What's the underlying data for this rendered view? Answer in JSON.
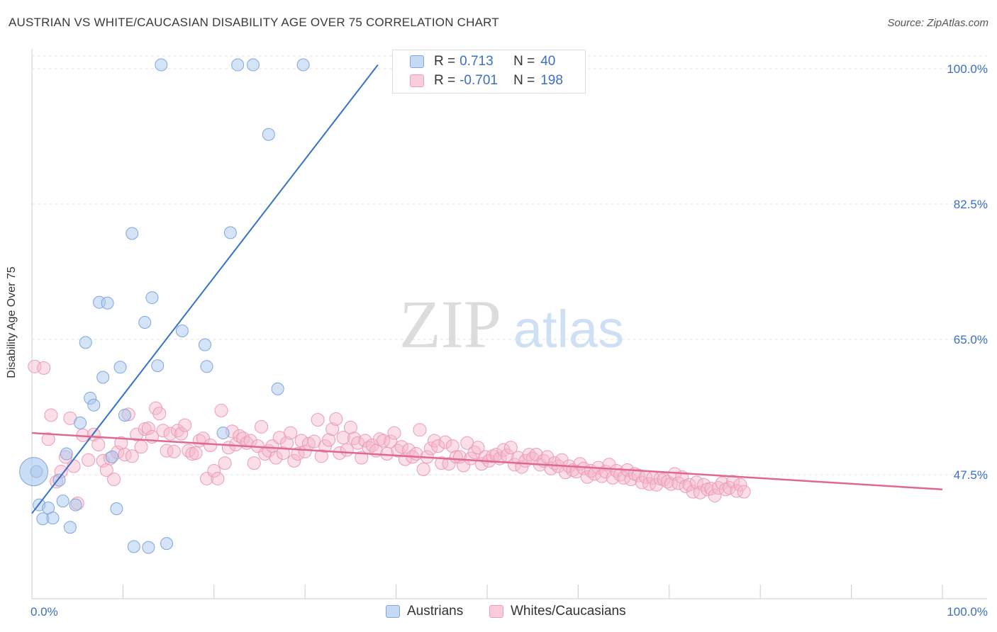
{
  "title": "AUSTRIAN VS WHITE/CAUCASIAN DISABILITY AGE OVER 75 CORRELATION CHART",
  "source": "Source: ZipAtlas.com",
  "watermark": {
    "zip": "ZIP",
    "atlas": "atlas"
  },
  "legend": {
    "rows": [
      {
        "r_label": "R =",
        "r_value": "0.713",
        "n_label": "N =",
        "n_value": "40",
        "color": "#a9c7ee"
      },
      {
        "r_label": "R =",
        "r_value": "-0.701",
        "n_label": "N =",
        "n_value": "198",
        "color": "#f5b7cb"
      }
    ]
  },
  "chart_data": {
    "type": "scatter",
    "xlabel": "",
    "ylabel": "Disability Age Over 75",
    "xlim": [
      0,
      100
    ],
    "ylim": [
      32.5,
      102
    ],
    "x_tick_labels": [
      "0.0%",
      "100.0%"
    ],
    "y_ticks": [
      47.5,
      65.0,
      82.5,
      100.0
    ],
    "y_tick_labels": [
      "47.5%",
      "65.0%",
      "82.5%",
      "100.0%"
    ],
    "grid": true,
    "colors": {
      "austrians": "#a9c7ee",
      "austrians_line": "#3472c9",
      "whites": "#f5b7cb",
      "whites_line": "#e0688f",
      "axis_label": "#3a6fc4"
    },
    "series": [
      {
        "name": "Austrians",
        "points": [
          [
            0.5,
            47.9
          ],
          [
            0.8,
            43.6
          ],
          [
            1.2,
            41.8
          ],
          [
            1.8,
            43.2
          ],
          [
            2.3,
            41.9
          ],
          [
            3.0,
            46.8
          ],
          [
            3.4,
            44.1
          ],
          [
            3.8,
            50.2
          ],
          [
            4.2,
            40.7
          ],
          [
            4.8,
            43.6
          ],
          [
            5.3,
            54.2
          ],
          [
            5.9,
            64.6
          ],
          [
            6.4,
            57.4
          ],
          [
            6.8,
            56.5
          ],
          [
            7.4,
            69.8
          ],
          [
            7.8,
            60.1
          ],
          [
            8.3,
            69.7
          ],
          [
            8.8,
            49.8
          ],
          [
            9.3,
            43.1
          ],
          [
            9.7,
            61.4
          ],
          [
            10.2,
            55.2
          ],
          [
            11.0,
            78.7
          ],
          [
            11.2,
            38.2
          ],
          [
            12.4,
            67.2
          ],
          [
            12.8,
            38.1
          ],
          [
            13.2,
            70.4
          ],
          [
            13.8,
            61.6
          ],
          [
            14.2,
            100.5
          ],
          [
            14.8,
            38.6
          ],
          [
            16.5,
            66.1
          ],
          [
            19.0,
            64.3
          ],
          [
            19.2,
            61.5
          ],
          [
            21.0,
            52.9
          ],
          [
            21.8,
            78.8
          ],
          [
            22.6,
            100.5
          ],
          [
            24.3,
            100.5
          ],
          [
            26.0,
            91.5
          ],
          [
            27.0,
            58.6
          ],
          [
            29.8,
            100.5
          ],
          [
            41.0,
            100.5
          ]
        ],
        "trend": [
          [
            0,
            42.5
          ],
          [
            38,
            100.5
          ]
        ]
      },
      {
        "name": "Whites/Caucasians",
        "points": [
          [
            0.3,
            61.5
          ],
          [
            1.3,
            61.3
          ],
          [
            1.8,
            52.1
          ],
          [
            2.1,
            55.2
          ],
          [
            2.7,
            46.6
          ],
          [
            3.2,
            47.9
          ],
          [
            3.7,
            49.8
          ],
          [
            4.2,
            54.8
          ],
          [
            4.6,
            48.6
          ],
          [
            5.0,
            43.8
          ],
          [
            5.6,
            52.6
          ],
          [
            6.2,
            49.4
          ],
          [
            6.8,
            52.7
          ],
          [
            7.3,
            51.4
          ],
          [
            7.8,
            49.3
          ],
          [
            8.2,
            48.1
          ],
          [
            8.6,
            49.6
          ],
          [
            9.0,
            46.9
          ],
          [
            9.4,
            50.4
          ],
          [
            9.8,
            51.6
          ],
          [
            10.2,
            50.1
          ],
          [
            10.6,
            55.3
          ],
          [
            11.0,
            49.9
          ],
          [
            11.5,
            52.7
          ],
          [
            12.0,
            51.1
          ],
          [
            12.4,
            53.4
          ],
          [
            12.8,
            53.5
          ],
          [
            13.2,
            52.4
          ],
          [
            13.6,
            56.1
          ],
          [
            14.0,
            55.4
          ],
          [
            14.4,
            53.2
          ],
          [
            14.8,
            50.6
          ],
          [
            15.2,
            52.8
          ],
          [
            15.6,
            50.5
          ],
          [
            16.0,
            53.2
          ],
          [
            16.4,
            52.8
          ],
          [
            16.8,
            53.9
          ],
          [
            17.2,
            50.6
          ],
          [
            17.6,
            50.2
          ],
          [
            18.0,
            50.3
          ],
          [
            18.4,
            51.9
          ],
          [
            18.8,
            52.2
          ],
          [
            19.2,
            47.0
          ],
          [
            19.6,
            51.3
          ],
          [
            20.0,
            48.0
          ],
          [
            20.4,
            47.0
          ],
          [
            20.8,
            55.8
          ],
          [
            21.2,
            49.0
          ],
          [
            21.6,
            51.0
          ],
          [
            22.0,
            53.1
          ],
          [
            22.4,
            51.4
          ],
          [
            22.8,
            52.5
          ],
          [
            23.2,
            52.2
          ],
          [
            23.6,
            51.6
          ],
          [
            24.0,
            51.9
          ],
          [
            24.4,
            49.0
          ],
          [
            24.8,
            51.2
          ],
          [
            25.2,
            53.7
          ],
          [
            25.6,
            50.2
          ],
          [
            26.0,
            50.6
          ],
          [
            26.4,
            51.2
          ],
          [
            26.8,
            49.7
          ],
          [
            27.2,
            52.3
          ],
          [
            27.6,
            50.3
          ],
          [
            28.0,
            51.6
          ],
          [
            28.4,
            52.9
          ],
          [
            28.8,
            49.3
          ],
          [
            29.2,
            50.2
          ],
          [
            29.6,
            51.9
          ],
          [
            30.0,
            50.5
          ],
          [
            30.4,
            51.5
          ],
          [
            31.0,
            51.8
          ],
          [
            31.4,
            54.6
          ],
          [
            31.8,
            49.9
          ],
          [
            32.2,
            51.2
          ],
          [
            32.6,
            52.0
          ],
          [
            33.0,
            53.4
          ],
          [
            33.4,
            54.7
          ],
          [
            33.8,
            50.3
          ],
          [
            34.2,
            52.3
          ],
          [
            34.6,
            50.7
          ],
          [
            35.0,
            53.6
          ],
          [
            35.4,
            52.2
          ],
          [
            35.8,
            51.6
          ],
          [
            36.2,
            49.7
          ],
          [
            36.6,
            51.9
          ],
          [
            37.0,
            51.0
          ],
          [
            37.4,
            51.3
          ],
          [
            37.8,
            50.6
          ],
          [
            38.2,
            52.1
          ],
          [
            38.6,
            51.9
          ],
          [
            39.0,
            50.2
          ],
          [
            39.4,
            51.8
          ],
          [
            39.8,
            52.9
          ],
          [
            40.2,
            50.6
          ],
          [
            40.6,
            51.1
          ],
          [
            41.0,
            49.5
          ],
          [
            41.4,
            50.7
          ],
          [
            41.8,
            49.8
          ],
          [
            42.2,
            50.2
          ],
          [
            42.6,
            53.3
          ],
          [
            43.0,
            48.2
          ],
          [
            43.4,
            49.8
          ],
          [
            43.8,
            50.9
          ],
          [
            44.2,
            51.9
          ],
          [
            44.6,
            51.2
          ],
          [
            45.0,
            49.0
          ],
          [
            45.4,
            51.7
          ],
          [
            45.8,
            48.9
          ],
          [
            46.2,
            51.2
          ],
          [
            46.6,
            49.8
          ],
          [
            47.0,
            49.8
          ],
          [
            47.4,
            48.7
          ],
          [
            47.8,
            51.6
          ],
          [
            48.2,
            49.6
          ],
          [
            48.6,
            50.4
          ],
          [
            49.0,
            51.0
          ],
          [
            49.4,
            48.9
          ],
          [
            49.8,
            49.8
          ],
          [
            50.2,
            49.3
          ],
          [
            50.6,
            49.9
          ],
          [
            51.0,
            50.1
          ],
          [
            51.4,
            49.6
          ],
          [
            51.8,
            50.7
          ],
          [
            52.2,
            50.0
          ],
          [
            52.6,
            51.0
          ],
          [
            53.0,
            48.8
          ],
          [
            53.4,
            49.7
          ],
          [
            53.8,
            48.5
          ],
          [
            54.2,
            49.3
          ],
          [
            54.6,
            50.1
          ],
          [
            55.0,
            49.6
          ],
          [
            55.4,
            50.1
          ],
          [
            55.8,
            48.8
          ],
          [
            56.2,
            49.3
          ],
          [
            56.6,
            49.8
          ],
          [
            57.0,
            48.3
          ],
          [
            57.4,
            49.0
          ],
          [
            57.8,
            48.6
          ],
          [
            58.2,
            49.4
          ],
          [
            58.6,
            47.8
          ],
          [
            59.0,
            48.6
          ],
          [
            59.4,
            48.1
          ],
          [
            59.8,
            47.9
          ],
          [
            60.2,
            48.9
          ],
          [
            60.6,
            48.3
          ],
          [
            61.0,
            47.2
          ],
          [
            61.4,
            48.0
          ],
          [
            61.8,
            47.6
          ],
          [
            62.2,
            48.4
          ],
          [
            62.6,
            47.3
          ],
          [
            63.0,
            47.9
          ],
          [
            63.4,
            48.8
          ],
          [
            63.8,
            47.1
          ],
          [
            64.2,
            48.0
          ],
          [
            64.6,
            47.5
          ],
          [
            65.0,
            47.1
          ],
          [
            65.4,
            48.1
          ],
          [
            65.8,
            46.9
          ],
          [
            66.2,
            47.6
          ],
          [
            66.6,
            47.4
          ],
          [
            67.0,
            46.5
          ],
          [
            67.4,
            47.2
          ],
          [
            67.8,
            46.3
          ],
          [
            68.2,
            47.1
          ],
          [
            68.6,
            46.2
          ],
          [
            69.0,
            47.0
          ],
          [
            69.4,
            46.9
          ],
          [
            69.8,
            46.6
          ],
          [
            70.2,
            46.3
          ],
          [
            70.6,
            47.6
          ],
          [
            71.0,
            46.4
          ],
          [
            71.4,
            47.2
          ],
          [
            71.8,
            46.0
          ],
          [
            72.2,
            46.2
          ],
          [
            72.6,
            45.3
          ],
          [
            73.0,
            46.5
          ],
          [
            73.4,
            45.2
          ],
          [
            73.8,
            46.2
          ],
          [
            74.2,
            45.6
          ],
          [
            74.6,
            45.7
          ],
          [
            75.0,
            44.8
          ],
          [
            75.4,
            45.8
          ],
          [
            75.8,
            46.4
          ],
          [
            76.2,
            45.6
          ],
          [
            76.6,
            45.8
          ],
          [
            77.0,
            46.6
          ],
          [
            77.4,
            45.4
          ],
          [
            77.8,
            46.2
          ],
          [
            78.2,
            45.3
          ]
        ],
        "trend": [
          [
            0,
            52.9
          ],
          [
            100,
            45.6
          ]
        ]
      }
    ]
  },
  "bottom_legend": [
    {
      "label": "Austrians",
      "color": "#a9c7ee"
    },
    {
      "label": "Whites/Caucasians",
      "color": "#f5b7cb"
    }
  ]
}
